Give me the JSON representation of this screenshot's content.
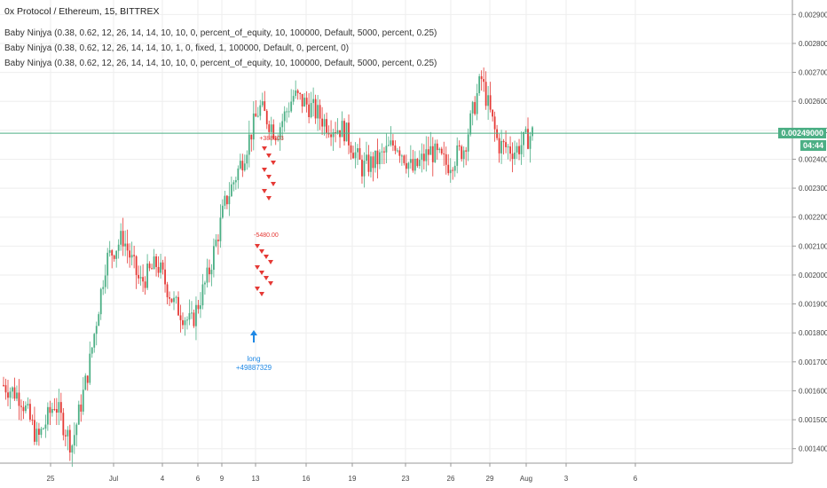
{
  "header": {
    "symbol_title": "0x Protocol / Ethereum, 15, BITTREX",
    "legend": [
      "Baby Ninjya (0.38, 0.62, 12, 26, 14, 14, 10, 10, 0, percent_of_equity, 10, 100000, Default, 5000, percent, 0.25)",
      "Baby Ninjya (0.38, 0.62, 12, 26, 14, 14, 10, 1, 0, fixed, 1, 100000, Default, 0, percent, 0)",
      "Baby Ninjya (0.38, 0.62, 12, 26, 14, 14, 10, 10, 0, percent_of_equity, 10, 100000, Default, 5000, percent, 0.25)"
    ]
  },
  "price_axis": {
    "current_price": "0.00249000",
    "countdown": "04:44"
  },
  "annotations": {
    "long_label": "long",
    "long_value": "+49887329",
    "short_top_label": "+388803",
    "short_mid_label": "-5480.00"
  },
  "colors": {
    "up": "#4caf85",
    "down": "#e53935",
    "current_line": "#4caf85",
    "signal": "#1e88e5",
    "grid": "#eeeeee"
  },
  "chart_data": {
    "type": "candlestick",
    "title": "0x Protocol / Ethereum, 15, BITTREX",
    "y_ticks": [
      "0.00290000",
      "0.00280000",
      "0.00270000",
      "0.00260000",
      "0.00250000",
      "0.00240000",
      "0.00230000",
      "0.00220000",
      "0.00210000",
      "0.00200000",
      "0.00190000",
      "0.00180000",
      "0.00170000",
      "0.00160000",
      "0.00150000",
      "0.00140000"
    ],
    "ylim": [
      0.00135,
      0.00295
    ],
    "x_ticks": [
      "25",
      "Jul",
      "4",
      "6",
      "9",
      "13",
      "16",
      "19",
      "23",
      "26",
      "29",
      "Aug",
      "3",
      "6"
    ],
    "series": [
      {
        "name": "close",
        "x": [
          "Jun 21",
          "Jun 23",
          "Jun 25",
          "Jun 27",
          "Jun 29",
          "Jul 1",
          "Jul 3",
          "Jul 5",
          "Jul 7",
          "Jul 9",
          "Jul 11",
          "Jul 12",
          "Jul 13",
          "Jul 14",
          "Jul 15",
          "Jul 16",
          "Jul 17",
          "Jul 18",
          "Jul 19",
          "Jul 20",
          "Jul 21",
          "Jul 22",
          "Jul 23",
          "Jul 24",
          "Jul 25",
          "Jul 26",
          "Jul 27",
          "Jul 28",
          "Jul 29",
          "Jul 30",
          "Jul 31",
          "Aug 1"
        ],
        "values": [
          0.00162,
          0.00158,
          0.00143,
          0.00156,
          0.00141,
          0.00168,
          0.00205,
          0.00213,
          0.00197,
          0.00204,
          0.0019,
          0.00183,
          0.002,
          0.00225,
          0.0024,
          0.00258,
          0.00249,
          0.00262,
          0.00258,
          0.00252,
          0.0025,
          0.00237,
          0.0024,
          0.00246,
          0.00236,
          0.00243,
          0.00238,
          0.00244,
          0.00268,
          0.00245,
          0.00243,
          0.00249
        ]
      }
    ],
    "current_price": 0.00249,
    "grid": true
  }
}
